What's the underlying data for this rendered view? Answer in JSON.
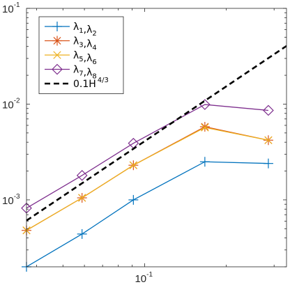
{
  "chart_data": {
    "type": "line",
    "x_scale": "log",
    "y_scale": "log",
    "xlim": [
      0.0367,
      0.3333
    ],
    "ylim": [
      0.0002,
      0.1
    ],
    "x_ticks": [
      {
        "base": "10",
        "exp": "-1",
        "value": 0.1
      }
    ],
    "y_ticks": [
      {
        "base": "10",
        "exp": "-3",
        "value": 0.001
      },
      {
        "base": "10",
        "exp": "-2",
        "value": 0.01
      },
      {
        "base": "10",
        "exp": "-1",
        "value": 0.1
      }
    ],
    "grid": false,
    "legend_position": "top-left",
    "series": [
      {
        "legend": [
          {
            "t": "λ"
          },
          {
            "sub": "1"
          },
          {
            "t": ","
          },
          {
            "t": "λ"
          },
          {
            "sub": "2"
          }
        ],
        "color": "#0072BD",
        "marker": "plus",
        "x": [
          0.0367,
          0.0588,
          0.0909,
          0.1667,
          0.2857
        ],
        "y": [
          0.0002,
          0.00044,
          0.001,
          0.0025,
          0.0024
        ]
      },
      {
        "legend": [
          {
            "t": "λ"
          },
          {
            "sub": "3"
          },
          {
            "t": ","
          },
          {
            "t": "λ"
          },
          {
            "sub": "4"
          }
        ],
        "color": "#D95319",
        "marker": "asterisk",
        "x": [
          0.0367,
          0.0588,
          0.0909,
          0.1667,
          0.2857
        ],
        "y": [
          0.00048,
          0.00105,
          0.0023,
          0.0058,
          0.0042
        ]
      },
      {
        "legend": [
          {
            "t": "λ"
          },
          {
            "sub": "5"
          },
          {
            "t": ","
          },
          {
            "t": "λ"
          },
          {
            "sub": "6"
          }
        ],
        "color": "#EDB120",
        "marker": "x",
        "x": [
          0.0367,
          0.0588,
          0.0909,
          0.1667,
          0.2857
        ],
        "y": [
          0.00048,
          0.00105,
          0.0023,
          0.0057,
          0.0042
        ]
      },
      {
        "legend": [
          {
            "t": "λ"
          },
          {
            "sub": "7"
          },
          {
            "t": ","
          },
          {
            "t": "λ"
          },
          {
            "sub": "8"
          }
        ],
        "color": "#7E2F8E",
        "marker": "diamond",
        "x": [
          0.0367,
          0.0588,
          0.0909,
          0.1667,
          0.2857
        ],
        "y": [
          0.00082,
          0.0018,
          0.0039,
          0.0099,
          0.0086
        ]
      },
      {
        "legend": [
          {
            "t": "0.1H"
          },
          {
            "sup": "4/3"
          }
        ],
        "color": "#000000",
        "marker": "none",
        "dashed": true,
        "x": [
          0.0367,
          0.3333
        ],
        "y": [
          0.000608,
          0.0405
        ]
      }
    ]
  }
}
